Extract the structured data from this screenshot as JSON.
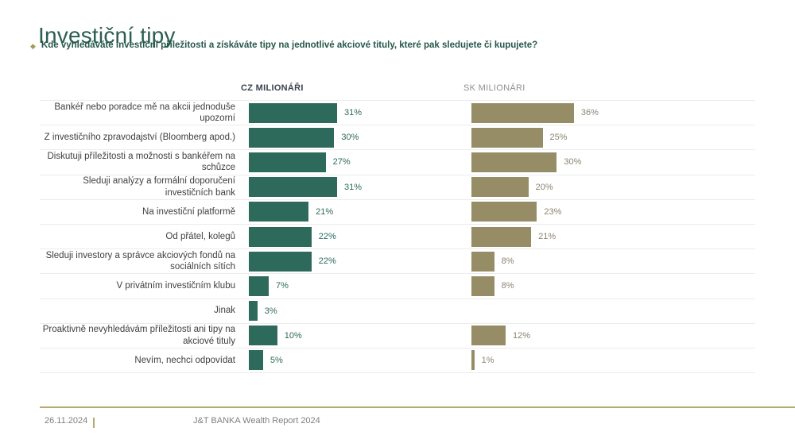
{
  "slide": {
    "title": "Investiční tipy",
    "bullet_glyph": "◆",
    "question": "Kde vyhledáváte investiční příležitosti a získáváte tipy na jednotlivé akciové tituly, které pak sledujete či kupujete?"
  },
  "chart_data": {
    "type": "bar",
    "orientation": "horizontal",
    "value_suffix": "%",
    "xlim": [
      0,
      40
    ],
    "grid": "horizontal row separator lines",
    "legend_position": "column headers above each bar group",
    "categories": [
      "Bankéř nebo poradce mě na akcii jednoduše upozorní",
      "Z investičního zpravodajství (Bloomberg apod.)",
      "Diskutuji příležitosti a možnosti s bankéřem na schůzce",
      "Sleduji analýzy a formální doporučení investičních bank",
      "Na investiční platformě",
      "Od přátel, kolegů",
      "Sleduji investory a správce akciových fondů na sociálních sítích",
      "V privátním investičním klubu",
      "Jinak",
      "Proaktivně nevyhledávám příležitosti ani tipy na akciové tituly",
      "Nevím, nechci odpovídat"
    ],
    "series": [
      {
        "name": "CZ MILIONÁŘI",
        "color": "#2d6a5c",
        "values": [
          31,
          30,
          27,
          31,
          21,
          22,
          22,
          7,
          3,
          10,
          5
        ]
      },
      {
        "name": "SK MILIONÁRI",
        "color": "#968d67",
        "values": [
          36,
          25,
          30,
          20,
          23,
          21,
          8,
          8,
          null,
          12,
          1
        ]
      }
    ]
  },
  "footer": {
    "date": "26.11.2024",
    "source": "J&T BANKA Wealth Report 2024"
  },
  "colors": {
    "title": "#2c5e52",
    "question": "#26574b",
    "bullet": "#a39b56",
    "cz_bar": "#2d6a5c",
    "cz_value": "#2d6a5c",
    "sk_bar": "#968d67",
    "sk_value": "#8c8472",
    "cz_header": "#39434e",
    "sk_header": "#8f8f8f",
    "label": "#3f3f3f",
    "separator": "#ececec",
    "footer_line": "#b5a871",
    "footer_text": "#808080"
  }
}
